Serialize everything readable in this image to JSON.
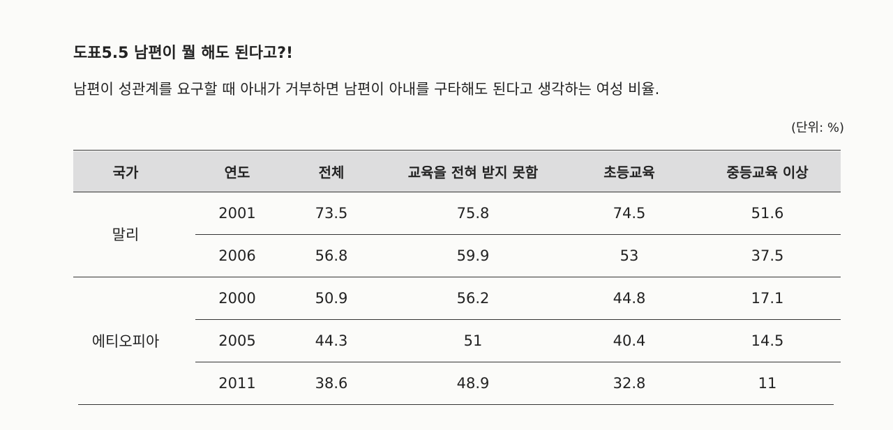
{
  "header": {
    "title": "도표5.5  남편이 뭘 해도 된다고?!",
    "subtitle": "남편이 성관계를 요구할 때 아내가 거부하면 남편이 아내를 구타해도 된다고 생각하는 여성 비율.",
    "unit": "(단위: %)"
  },
  "table": {
    "columns": [
      "국가",
      "연도",
      "전체",
      "교육을 전혀 받지 못함",
      "초등교육",
      "중등교육 이상"
    ],
    "groups": [
      {
        "country": "말리",
        "rows": [
          [
            2001,
            73.5,
            75.8,
            74.5,
            51.6
          ],
          [
            2006,
            56.8,
            59.9,
            53,
            37.5
          ]
        ]
      },
      {
        "country": "에티오피아",
        "rows": [
          [
            2000,
            50.9,
            56.2,
            44.8,
            17.1
          ],
          [
            2005,
            44.3,
            51,
            40.4,
            14.5
          ],
          [
            2011,
            38.6,
            48.9,
            32.8,
            11
          ]
        ]
      }
    ]
  }
}
